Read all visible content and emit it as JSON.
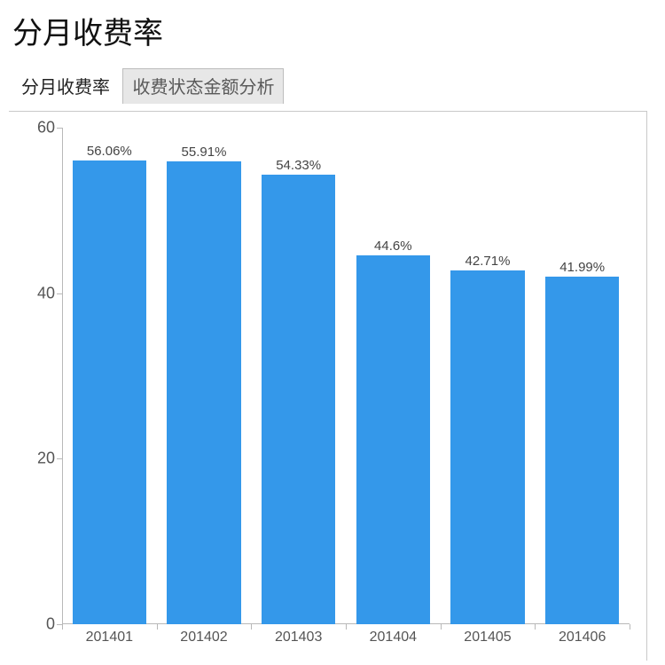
{
  "title": "分月收费率",
  "tabs": [
    {
      "label": "分月收费率",
      "active": true
    },
    {
      "label": "收费状态金额分析",
      "active": false
    }
  ],
  "chart": {
    "type": "bar",
    "categories": [
      "201401",
      "201402",
      "201403",
      "201404",
      "201405",
      "201406"
    ],
    "values": [
      56.06,
      55.91,
      54.33,
      44.6,
      42.71,
      41.99
    ],
    "value_labels": [
      "56.06%",
      "55.91%",
      "54.33%",
      "44.6%",
      "42.71%",
      "41.99%"
    ],
    "bar_color": "#3498ea",
    "ylim": [
      0,
      60
    ],
    "yticks": [
      0,
      20,
      40,
      60
    ],
    "bar_width_ratio": 0.78,
    "axis_color": "#b8b8b8",
    "label_color": "#555555",
    "value_label_color": "#444444",
    "label_fontsize": 18,
    "value_label_fontsize": 15,
    "category_label_fontsize": 16,
    "background_color": "#ffffff",
    "border_color": "#c9c9c9"
  }
}
